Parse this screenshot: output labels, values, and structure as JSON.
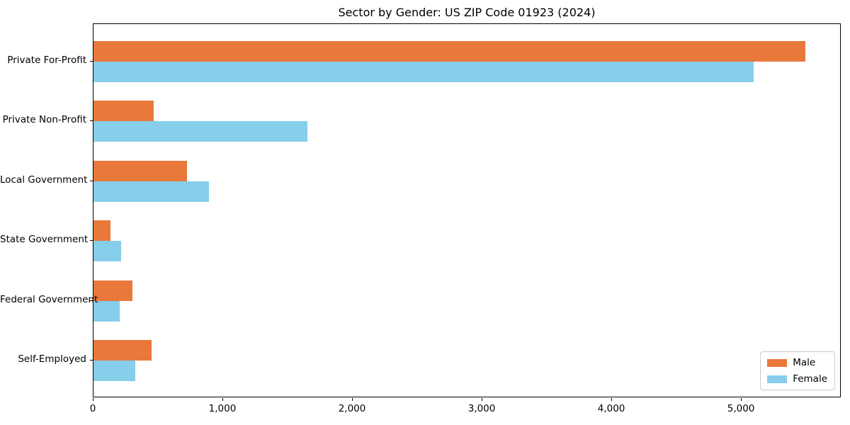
{
  "title": "Sector by Gender: US ZIP Code 01923 (2024)",
  "colors": {
    "male": "#e8793b",
    "female": "#87ceeb",
    "axis": "#000000",
    "background": "#ffffff",
    "legend_border": "#cccccc"
  },
  "legend": {
    "position": "lower right",
    "entries": [
      "Male",
      "Female"
    ]
  },
  "chart_data": {
    "type": "bar",
    "orientation": "horizontal",
    "title": "Sector by Gender: US ZIP Code 01923 (2024)",
    "categories": [
      "Private For-Profit",
      "Private Non-Profit",
      "Local Government",
      "State Government",
      "Federal Government",
      "Self-Employed"
    ],
    "series": [
      {
        "name": "Male",
        "color": "#e8793b",
        "values": [
          5490,
          465,
          720,
          130,
          300,
          450
        ]
      },
      {
        "name": "Female",
        "color": "#87ceeb",
        "values": [
          5090,
          1650,
          890,
          215,
          200,
          320
        ]
      }
    ],
    "xlabel": "",
    "ylabel": "",
    "xlim": [
      0,
      5770
    ],
    "xticks": [
      0,
      1000,
      2000,
      3000,
      4000,
      5000
    ],
    "xtick_labels": [
      "0",
      "1,000",
      "2,000",
      "3,000",
      "4,000",
      "5,000"
    ],
    "grid": false,
    "legend_position": "lower right"
  }
}
